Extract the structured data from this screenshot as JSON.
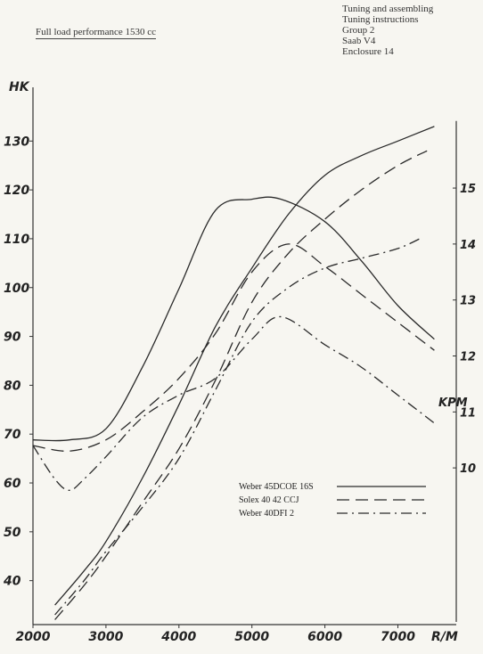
{
  "header": {
    "title": "Full load performance 1530 cc",
    "top_right": [
      "Tuning and assembling",
      "Tuning instructions",
      "Group 2",
      "Saab V4",
      "Enclosure 14"
    ]
  },
  "chart_data": {
    "type": "line",
    "title": "Full load performance 1530 cc",
    "ylabel": "HK",
    "ylabel_right": "KPM",
    "xlabel": "R/M",
    "xlim": [
      2000,
      7800
    ],
    "ylim": [
      31,
      141
    ],
    "ylim_right": [
      7.2,
      16.8
    ],
    "x_ticks": [
      2000,
      3000,
      4000,
      5000,
      6000,
      7000
    ],
    "y_ticks": [
      40,
      50,
      60,
      70,
      80,
      90,
      100,
      110,
      120,
      130
    ],
    "y_right_ticks": [
      10,
      11,
      12,
      13,
      14,
      15
    ],
    "grid": false,
    "legend_position": "lower-right",
    "legend": [
      "Weber 45DCOE  16S",
      "Solex 40  42 CCJ",
      "Weber 40DFI  2"
    ],
    "series": [
      {
        "name": "Weber 45DCOE  16S",
        "quantity": "power",
        "axis": "left",
        "dash": "solid",
        "x": [
          2300,
          2700,
          3000,
          3500,
          4000,
          4500,
          5000,
          5500,
          6000,
          6500,
          7000,
          7500
        ],
        "y": [
          35,
          42,
          48,
          61,
          76,
          92,
          104,
          115,
          123,
          127,
          130,
          133
        ]
      },
      {
        "name": "Solex 40  42 CCJ",
        "quantity": "power",
        "axis": "left",
        "dash": "long-dash",
        "x": [
          2300,
          2700,
          3000,
          3500,
          4000,
          4500,
          5000,
          5500,
          6000,
          6500,
          7000,
          7400
        ],
        "y": [
          32,
          39,
          45,
          56,
          67,
          81,
          97,
          107,
          114,
          120,
          125,
          128
        ]
      },
      {
        "name": "Weber 40DFI  2",
        "quantity": "power",
        "axis": "left",
        "dash": "dash-dot",
        "x": [
          2300,
          2700,
          3000,
          3500,
          4000,
          4500,
          5000,
          5500,
          6000,
          6500,
          7000,
          7300
        ],
        "y": [
          33,
          40,
          46,
          55,
          65,
          79,
          93,
          100,
          104,
          106,
          108,
          110
        ]
      },
      {
        "name": "Weber 45DCOE  16S",
        "quantity": "torque",
        "axis": "right",
        "dash": "solid",
        "x": [
          2000,
          2500,
          3000,
          3500,
          4000,
          4500,
          5000,
          5400,
          6000,
          6500,
          7000,
          7500
        ],
        "y": [
          10.5,
          10.5,
          10.7,
          11.8,
          13.2,
          14.6,
          14.8,
          14.8,
          14.4,
          13.7,
          12.9,
          12.3
        ]
      },
      {
        "name": "Solex 40  42 CCJ",
        "quantity": "torque",
        "axis": "right",
        "dash": "long-dash",
        "x": [
          2000,
          2500,
          3000,
          3500,
          4000,
          4500,
          5000,
          5500,
          6000,
          6500,
          7000,
          7500
        ],
        "y": [
          10.4,
          10.3,
          10.5,
          11.0,
          11.6,
          12.4,
          13.5,
          14.0,
          13.6,
          13.1,
          12.6,
          12.1
        ]
      },
      {
        "name": "Weber 40DFI  2",
        "quantity": "torque",
        "axis": "right",
        "dash": "dash-dot",
        "x": [
          2000,
          2300,
          2500,
          2700,
          3000,
          3500,
          4000,
          4500,
          5000,
          5400,
          6000,
          6500,
          7000,
          7500
        ],
        "y": [
          10.4,
          9.8,
          9.6,
          9.8,
          10.2,
          10.9,
          11.3,
          11.6,
          12.3,
          12.7,
          12.2,
          11.8,
          11.3,
          10.8
        ]
      }
    ]
  }
}
